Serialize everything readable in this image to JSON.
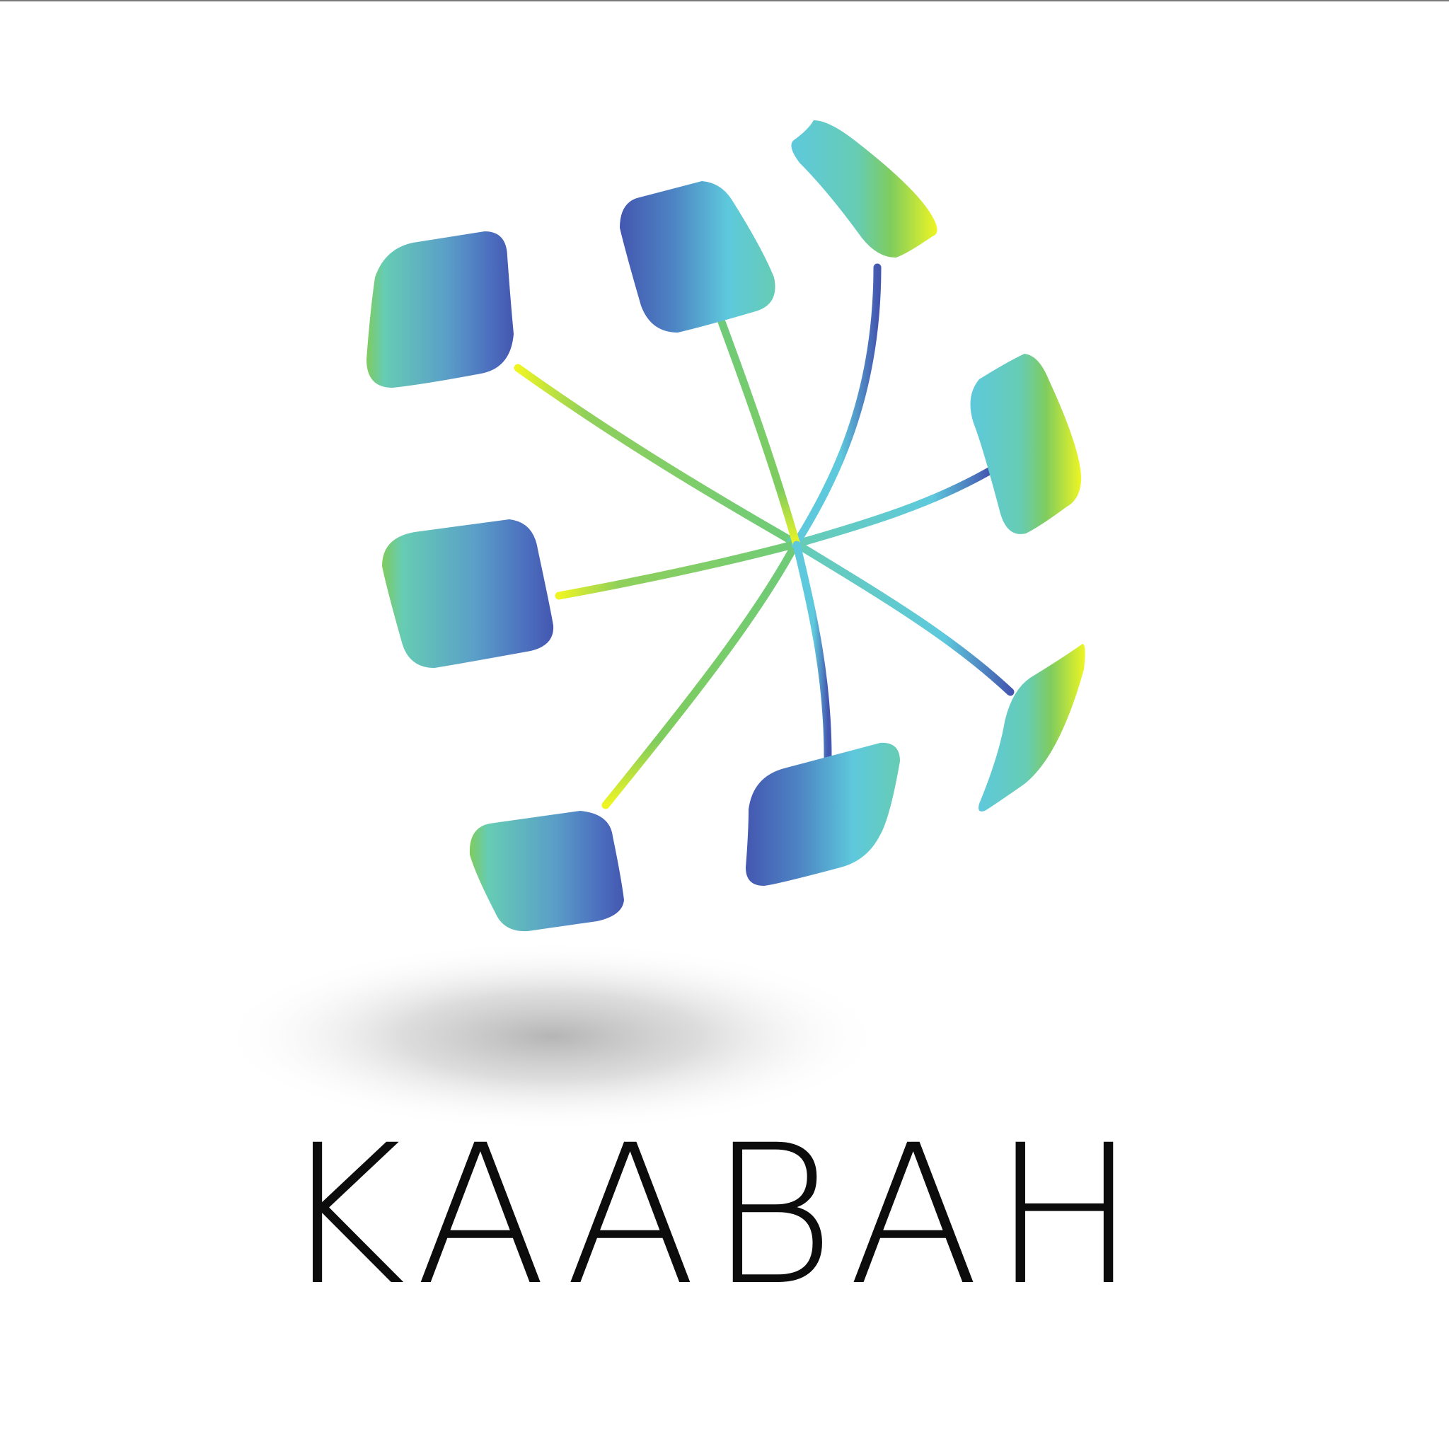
{
  "logo": {
    "wordmark": "KAABAH",
    "palette": {
      "deep_blue": "#4457b0",
      "sky": "#5ec9dc",
      "teal": "#66ccb4",
      "green": "#7fcc5e",
      "yellow": "#eef523",
      "shadow": "#b5b5b5",
      "ink": "#0c0c0c"
    }
  }
}
